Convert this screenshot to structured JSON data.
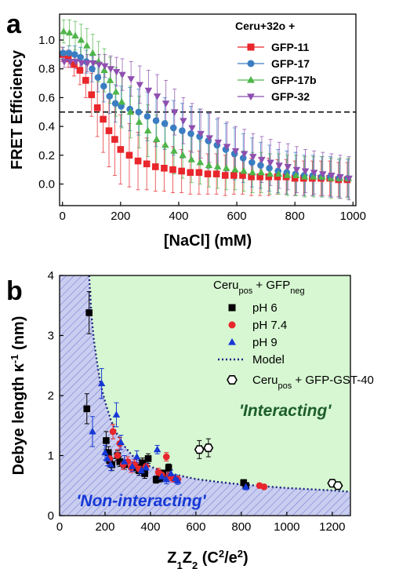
{
  "chart_data": [
    {
      "panel_label": "a",
      "type": "scatter",
      "xlabel": "[NaCl] (mM)",
      "ylabel": "FRET Efficiency",
      "xlim": [
        -10,
        1010
      ],
      "ylim": [
        -0.15,
        1.18
      ],
      "xticks": [
        0,
        200,
        400,
        600,
        800,
        1000
      ],
      "yticks": [
        0.0,
        0.2,
        0.4,
        0.6,
        0.8,
        1.0
      ],
      "xtick_labels": [
        "0",
        "200",
        "400",
        "600",
        "800",
        "1000"
      ],
      "ytick_labels": [
        "0.0",
        "0.2",
        "0.4",
        "0.6",
        "0.8",
        "1.0"
      ],
      "legend_title": "Ceru+32o +",
      "legend_position": "top-right",
      "reference_line": {
        "y": 0.5,
        "style": "dashed"
      },
      "series": [
        {
          "name": "GFP-11",
          "color": "#e8262b",
          "marker": "square",
          "x": [
            0,
            20,
            40,
            60,
            80,
            100,
            120,
            140,
            160,
            180,
            200,
            230,
            260,
            290,
            320,
            350,
            380,
            410,
            440,
            470,
            500,
            530,
            560,
            590,
            620,
            650,
            680,
            710,
            740,
            770,
            800,
            830,
            860,
            890,
            920,
            950,
            980
          ],
          "y": [
            0.9,
            0.87,
            0.83,
            0.79,
            0.72,
            0.62,
            0.53,
            0.45,
            0.37,
            0.31,
            0.24,
            0.2,
            0.16,
            0.14,
            0.12,
            0.11,
            0.1,
            0.09,
            0.08,
            0.08,
            0.07,
            0.07,
            0.06,
            0.06,
            0.06,
            0.05,
            0.05,
            0.05,
            0.05,
            0.05,
            0.04,
            0.04,
            0.04,
            0.04,
            0.04,
            0.03,
            0.03
          ],
          "err": [
            0.05,
            0.06,
            0.08,
            0.1,
            0.12,
            0.15,
            0.2,
            0.23,
            0.25,
            0.25,
            0.24,
            0.22,
            0.2,
            0.18,
            0.17,
            0.16,
            0.16,
            0.15,
            0.15,
            0.15,
            0.14,
            0.14,
            0.14,
            0.13,
            0.13,
            0.13,
            0.13,
            0.13,
            0.12,
            0.12,
            0.12,
            0.12,
            0.12,
            0.12,
            0.12,
            0.12,
            0.12
          ]
        },
        {
          "name": "GFP-17",
          "color": "#3a7dc2",
          "marker": "circle",
          "x": [
            0,
            20,
            40,
            60,
            80,
            100,
            120,
            140,
            160,
            180,
            200,
            230,
            260,
            290,
            320,
            350,
            380,
            410,
            440,
            470,
            500,
            530,
            560,
            590,
            620,
            650,
            680,
            710,
            740,
            770,
            800,
            830,
            860,
            890,
            920,
            950,
            980
          ],
          "y": [
            0.91,
            0.91,
            0.9,
            0.88,
            0.85,
            0.8,
            0.74,
            0.68,
            0.61,
            0.56,
            0.54,
            0.52,
            0.5,
            0.47,
            0.44,
            0.42,
            0.39,
            0.37,
            0.35,
            0.33,
            0.3,
            0.27,
            0.24,
            0.21,
            0.18,
            0.15,
            0.13,
            0.11,
            0.09,
            0.08,
            0.07,
            0.06,
            0.06,
            0.05,
            0.05,
            0.04,
            0.04
          ],
          "err": [
            0.04,
            0.05,
            0.06,
            0.07,
            0.08,
            0.09,
            0.1,
            0.11,
            0.12,
            0.13,
            0.14,
            0.15,
            0.16,
            0.17,
            0.18,
            0.18,
            0.19,
            0.19,
            0.19,
            0.19,
            0.19,
            0.18,
            0.18,
            0.18,
            0.17,
            0.17,
            0.16,
            0.16,
            0.15,
            0.15,
            0.15,
            0.14,
            0.14,
            0.14,
            0.14,
            0.13,
            0.13
          ]
        },
        {
          "name": "GFP-17b",
          "color": "#4fb64a",
          "marker": "triangle-up",
          "x": [
            0,
            20,
            40,
            60,
            80,
            100,
            120,
            140,
            160,
            180,
            200,
            230,
            260,
            290,
            320,
            350,
            380,
            410,
            440,
            470,
            500,
            530,
            560,
            590,
            620,
            650,
            680,
            710,
            740,
            770,
            800,
            830,
            860,
            890,
            920,
            950,
            980
          ],
          "y": [
            1.06,
            1.05,
            1.03,
            1.0,
            0.96,
            0.91,
            0.85,
            0.79,
            0.72,
            0.64,
            0.57,
            0.5,
            0.43,
            0.37,
            0.31,
            0.27,
            0.23,
            0.2,
            0.17,
            0.15,
            0.13,
            0.12,
            0.11,
            0.1,
            0.09,
            0.08,
            0.08,
            0.07,
            0.07,
            0.06,
            0.06,
            0.05,
            0.05,
            0.05,
            0.04,
            0.04,
            0.04
          ],
          "err": [
            0.08,
            0.09,
            0.1,
            0.11,
            0.12,
            0.13,
            0.14,
            0.15,
            0.16,
            0.17,
            0.18,
            0.18,
            0.18,
            0.18,
            0.17,
            0.17,
            0.16,
            0.16,
            0.16,
            0.15,
            0.15,
            0.15,
            0.15,
            0.14,
            0.14,
            0.14,
            0.14,
            0.14,
            0.14,
            0.14,
            0.14,
            0.14,
            0.14,
            0.14,
            0.14,
            0.14,
            0.14
          ]
        },
        {
          "name": "GFP-32",
          "color": "#8e4fb0",
          "marker": "triangle-down",
          "x": [
            0,
            20,
            40,
            60,
            80,
            100,
            120,
            140,
            160,
            180,
            200,
            230,
            260,
            290,
            320,
            350,
            380,
            410,
            440,
            470,
            500,
            530,
            560,
            590,
            620,
            650,
            680,
            710,
            740,
            770,
            800,
            830,
            860,
            890,
            920,
            950,
            980
          ],
          "y": [
            0.85,
            0.85,
            0.85,
            0.84,
            0.84,
            0.84,
            0.83,
            0.82,
            0.8,
            0.78,
            0.76,
            0.73,
            0.69,
            0.65,
            0.61,
            0.56,
            0.5,
            0.44,
            0.39,
            0.35,
            0.32,
            0.29,
            0.26,
            0.23,
            0.21,
            0.19,
            0.17,
            0.15,
            0.13,
            0.12,
            0.1,
            0.09,
            0.08,
            0.07,
            0.06,
            0.05,
            0.04
          ],
          "err": [
            0.04,
            0.04,
            0.05,
            0.05,
            0.06,
            0.06,
            0.07,
            0.08,
            0.09,
            0.1,
            0.11,
            0.12,
            0.13,
            0.14,
            0.15,
            0.16,
            0.16,
            0.16,
            0.17,
            0.17,
            0.17,
            0.17,
            0.17,
            0.17,
            0.17,
            0.16,
            0.16,
            0.16,
            0.16,
            0.16,
            0.16,
            0.15,
            0.15,
            0.15,
            0.15,
            0.15,
            0.15
          ]
        }
      ]
    },
    {
      "panel_label": "b",
      "type": "scatter",
      "xlabel_main": "Z",
      "xlabel_sub1": "1",
      "xlabel_mid": "Z",
      "xlabel_sub2": "2",
      "xlabel_unit_open": " (C",
      "xlabel_sup1": "2",
      "xlabel_unit_mid": "/e",
      "xlabel_sup2": "2",
      "xlabel_unit_close": ")",
      "ylabel_main": "Debye length κ",
      "ylabel_sup": "-1",
      "ylabel_unit": " (nm)",
      "xlim": [
        0,
        1280
      ],
      "ylim": [
        0,
        4
      ],
      "xticks": [
        0,
        200,
        400,
        600,
        800,
        1000,
        1200
      ],
      "yticks": [
        0,
        1,
        2,
        3,
        4
      ],
      "xtick_labels": [
        "0",
        "200",
        "400",
        "600",
        "800",
        "1000",
        "1200"
      ],
      "ytick_labels": [
        "0",
        "1",
        "2",
        "3",
        "4"
      ],
      "legend_title_main": "Ceru",
      "legend_title_sub1": "pos",
      "legend_title_mid": " + GFP",
      "legend_title_sub2": "neg",
      "legend_position": "top-right",
      "region_labels": {
        "interacting": "'Interacting'",
        "non_interacting": "'Non-interacting'"
      },
      "region_colors": {
        "interacting": "#d6f7d1",
        "non_interacting": "#c9cdf0"
      },
      "model": {
        "name": "Model",
        "color": "#1a237e",
        "x": [
          130,
          140,
          150,
          165,
          180,
          200,
          225,
          250,
          280,
          320,
          370,
          430,
          500,
          600,
          700,
          800,
          900,
          1000,
          1100,
          1200,
          1270
        ],
        "y": [
          4.0,
          3.35,
          2.95,
          2.55,
          2.2,
          1.9,
          1.6,
          1.38,
          1.18,
          1.0,
          0.87,
          0.77,
          0.69,
          0.61,
          0.56,
          0.52,
          0.49,
          0.46,
          0.44,
          0.42,
          0.4
        ]
      },
      "series": [
        {
          "name": "pH 6",
          "color": "#000000",
          "marker": "square",
          "x": [
            130,
            120,
            205,
            215,
            220,
            230,
            255,
            265,
            285,
            340,
            350,
            365,
            375,
            390,
            425,
            440,
            445,
            455,
            480,
            810,
            820
          ],
          "y": [
            3.38,
            1.78,
            1.25,
            1.05,
            0.92,
            0.85,
            1.0,
            0.9,
            0.85,
            0.8,
            0.75,
            0.88,
            0.7,
            0.95,
            0.6,
            0.62,
            0.65,
            0.7,
            0.8,
            0.55,
            0.5
          ],
          "err": [
            0.35,
            0.25,
            0.15,
            0.1,
            0.1,
            0.1,
            0.08,
            0.08,
            0.08,
            0.08,
            0.08,
            0.08,
            0.08,
            0.08,
            0.06,
            0.06,
            0.06,
            0.06,
            0.06,
            0.05,
            0.05
          ]
        },
        {
          "name": "pH 7.4",
          "color": "#e8262b",
          "marker": "circle",
          "x": [
            220,
            235,
            255,
            265,
            280,
            300,
            315,
            330,
            350,
            380,
            435,
            450,
            470,
            480,
            500,
            520,
            880,
            900
          ],
          "y": [
            0.95,
            1.4,
            1.0,
            1.2,
            0.85,
            0.9,
            0.8,
            0.85,
            0.78,
            0.82,
            0.72,
            0.68,
            0.98,
            0.65,
            0.62,
            0.6,
            0.5,
            0.48
          ],
          "err": [
            0.1,
            0.12,
            0.1,
            0.1,
            0.08,
            0.08,
            0.08,
            0.08,
            0.08,
            0.08,
            0.07,
            0.07,
            0.07,
            0.07,
            0.06,
            0.06,
            0.04,
            0.04
          ]
        },
        {
          "name": "pH 9",
          "color": "#1538d6",
          "marker": "triangle-up",
          "x": [
            145,
            185,
            200,
            210,
            225,
            250,
            270,
            285,
            320,
            340,
            360,
            380,
            430,
            450,
            470,
            490,
            510,
            520,
            820
          ],
          "y": [
            1.4,
            2.2,
            1.05,
            0.95,
            0.85,
            1.68,
            1.22,
            0.9,
            0.82,
            0.98,
            0.75,
            0.8,
            1.1,
            0.65,
            0.6,
            0.7,
            0.62,
            0.58,
            0.48
          ],
          "err": [
            0.25,
            0.25,
            0.12,
            0.12,
            0.1,
            0.2,
            0.12,
            0.1,
            0.08,
            0.1,
            0.08,
            0.08,
            0.07,
            0.07,
            0.07,
            0.06,
            0.06,
            0.06,
            0.05
          ]
        },
        {
          "name_main": "Ceru",
          "name_sub": "pos",
          "name_rest": " + GFP-GST-40",
          "color": "#000000",
          "marker": "hexagon-open",
          "x": [
            615,
            655,
            1200,
            1225
          ],
          "y": [
            1.1,
            1.13,
            0.54,
            0.5
          ],
          "err": [
            0.15,
            0.15,
            0.05,
            0.05
          ]
        }
      ]
    }
  ]
}
